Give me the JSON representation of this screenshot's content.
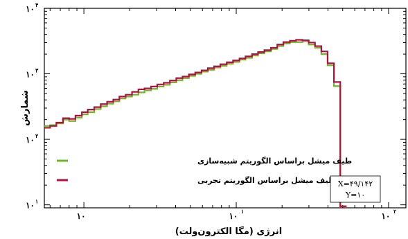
{
  "chart_data": {
    "type": "line",
    "step": true,
    "xscale": "log",
    "yscale": "log",
    "xlim": [
      0.55,
      130
    ],
    "ylim": [
      9,
      10000
    ],
    "grid": false,
    "xlabel": "انرژی (مگا الکترون‌ولت)",
    "ylabel": "شمارش",
    "x_ticks": [
      {
        "value": 1,
        "base": "۱۰",
        "exp": ""
      },
      {
        "value": 10,
        "base": "۱۰",
        "exp": "۱"
      },
      {
        "value": 100,
        "base": "۱۰",
        "exp": "۲"
      }
    ],
    "y_ticks": [
      {
        "value": 10,
        "base": "۱۰",
        "exp": "۱"
      },
      {
        "value": 100,
        "base": "۱۰",
        "exp": "۲"
      },
      {
        "value": 1000,
        "base": "۱۰",
        "exp": "۳"
      },
      {
        "value": 10000,
        "base": "۱۰",
        "exp": "۴"
      }
    ],
    "legend_position": "lower-left",
    "series": [
      {
        "name": "طیف میشل براساس الگوریتم شبیه‌سازی",
        "color": "#6fb52c",
        "x": [
          0.55,
          0.6,
          0.66,
          0.73,
          0.8,
          0.88,
          0.97,
          1.06,
          1.17,
          1.29,
          1.42,
          1.56,
          1.71,
          1.88,
          2.07,
          2.28,
          2.5,
          2.76,
          3.03,
          3.34,
          3.67,
          4.04,
          4.44,
          4.89,
          5.38,
          5.92,
          6.51,
          7.16,
          7.87,
          8.66,
          9.53,
          10.5,
          11.5,
          12.7,
          13.9,
          15.3,
          16.9,
          18.6,
          20.4,
          22.5,
          24.7,
          27.2,
          29.9,
          32.9,
          36.2,
          39.8,
          43.8,
          48.2
        ],
        "y": [
          160,
          165,
          175,
          200,
          190,
          215,
          240,
          260,
          290,
          320,
          350,
          380,
          420,
          450,
          480,
          520,
          560,
          590,
          640,
          680,
          740,
          800,
          860,
          930,
          1000,
          1080,
          1150,
          1250,
          1320,
          1420,
          1520,
          1650,
          1750,
          1900,
          2050,
          2200,
          2400,
          2650,
          2900,
          3050,
          3050,
          3150,
          2800,
          2500,
          2000,
          1350,
          650,
          9.5
        ]
      },
      {
        "name": "طیف میشل براساس الگوریتم تجربی",
        "color": "#b0123e",
        "x": [
          0.55,
          0.6,
          0.66,
          0.73,
          0.8,
          0.88,
          0.97,
          1.06,
          1.17,
          1.29,
          1.42,
          1.56,
          1.71,
          1.88,
          2.07,
          2.28,
          2.5,
          2.76,
          3.03,
          3.34,
          3.67,
          4.04,
          4.44,
          4.89,
          5.38,
          5.92,
          6.51,
          7.16,
          7.87,
          8.66,
          9.53,
          10.5,
          11.5,
          12.7,
          13.9,
          15.3,
          16.9,
          18.6,
          20.4,
          22.5,
          24.7,
          27.2,
          29.9,
          32.9,
          36.2,
          39.8,
          43.8,
          48.2
        ],
        "y": [
          150,
          160,
          180,
          210,
          205,
          230,
          260,
          285,
          310,
          345,
          375,
          405,
          450,
          480,
          530,
          580,
          600,
          640,
          690,
          730,
          790,
          860,
          910,
          980,
          1050,
          1130,
          1220,
          1300,
          1400,
          1500,
          1600,
          1720,
          1850,
          2000,
          2150,
          2300,
          2500,
          2800,
          3050,
          3200,
          3300,
          3250,
          3000,
          2650,
          2200,
          1450,
          750,
          9.5
        ]
      }
    ]
  },
  "readout": {
    "x_text": "X=۴۹/۱۴۲",
    "y_text": "Y=۱۰"
  }
}
